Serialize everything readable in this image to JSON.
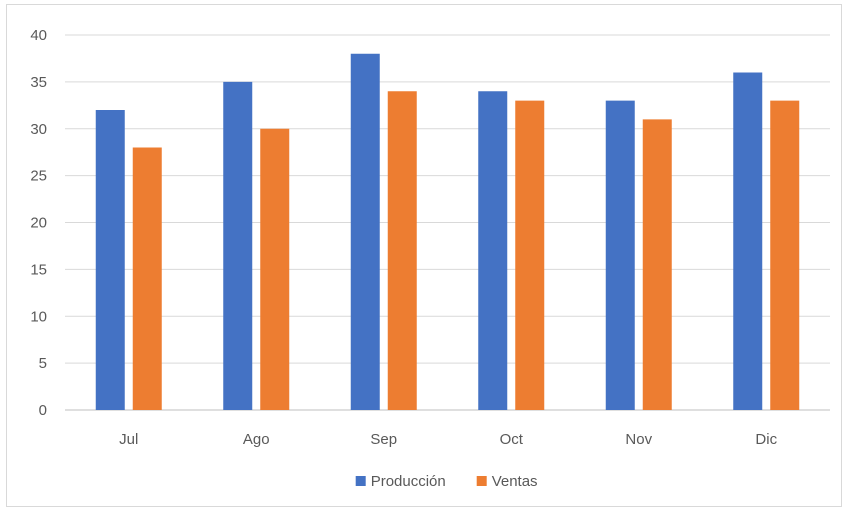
{
  "chart_data": {
    "type": "bar",
    "categories": [
      "Jul",
      "Ago",
      "Sep",
      "Oct",
      "Nov",
      "Dic"
    ],
    "series": [
      {
        "name": "Producción",
        "color": "#4472C4",
        "values": [
          32,
          35,
          38,
          34,
          33,
          36
        ]
      },
      {
        "name": "Ventas",
        "color": "#ED7D31",
        "values": [
          28,
          30,
          34,
          33,
          31,
          33
        ]
      }
    ],
    "y_ticks": [
      "0",
      "5",
      "10",
      "15",
      "20",
      "25",
      "30",
      "35",
      "40"
    ],
    "ylim": [
      0,
      40
    ],
    "grid": true,
    "legend_position": "bottom"
  }
}
